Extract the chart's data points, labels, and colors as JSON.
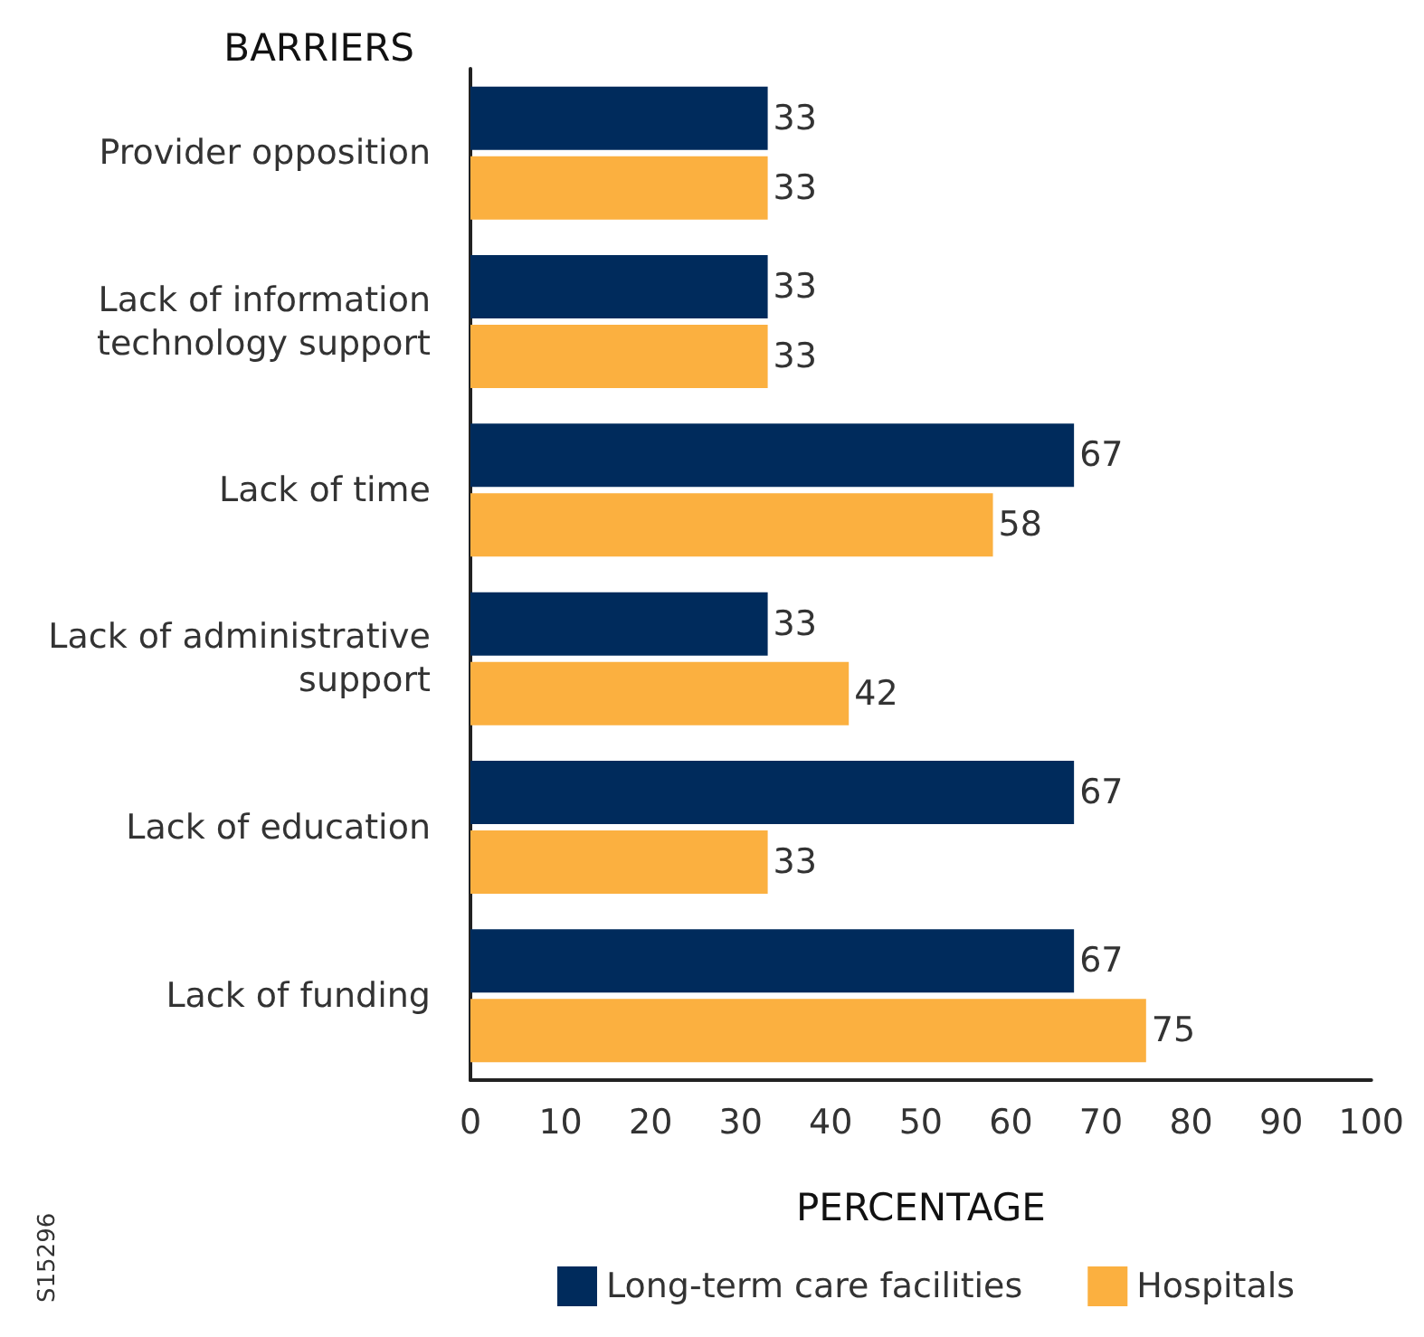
{
  "chart_data": {
    "type": "bar",
    "orientation": "horizontal",
    "ylabel": "BARRIERS",
    "xlabel": "PERCENTAGE",
    "categories": [
      "Provider opposition",
      "Lack of information\ntechnology support",
      "Lack of time",
      "Lack of administrative\nsupport",
      "Lack of education",
      "Lack of funding"
    ],
    "series": [
      {
        "name": "Long-term care facilities",
        "color": "#002b5c",
        "values": [
          33,
          33,
          67,
          33,
          67,
          67
        ]
      },
      {
        "name": "Hospitals",
        "color": "#fbb040",
        "values": [
          33,
          33,
          58,
          42,
          33,
          75
        ]
      }
    ],
    "xlim": [
      0,
      100
    ],
    "xticks": [
      0,
      10,
      20,
      30,
      40,
      50,
      60,
      70,
      80,
      90,
      100
    ],
    "data_labels": true,
    "grid": false,
    "legend": "bottom",
    "annotations": [
      "S15296"
    ]
  }
}
